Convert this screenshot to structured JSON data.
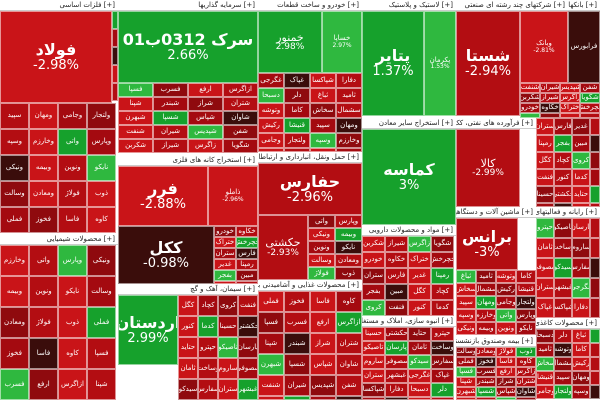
{
  "sectors": [
    {
      "id": "s1",
      "label": "[+] فلزات اساسی"
    },
    {
      "id": "s2",
      "label": "[+] سرمایه گذاریها"
    },
    {
      "id": "s3",
      "label": "[+] خودرو و ساخت قطعات"
    },
    {
      "id": "s4",
      "label": "[+] لاستیک و پلاستیک"
    },
    {
      "id": "s5",
      "label": "[+] شرکتهای چند رشته ای صنعتی"
    },
    {
      "id": "s6",
      "label": "[+] بانکها"
    },
    {
      "id": "s7",
      "label": "[+] استخراج کانه های فلزی"
    },
    {
      "id": "s8",
      "label": "[+] حمل ونقل، انبارداری و ارتباطات"
    },
    {
      "id": "s9",
      "label": "[+] استخراج سایر معادن"
    },
    {
      "id": "s10",
      "label": "[+] فرآورده های نفتی، کک و سوخت هسته ای"
    },
    {
      "id": "s11",
      "label": "[+] محصولات شیمیایی"
    },
    {
      "id": "s12",
      "label": "[+] سیمان، آهک و گچ"
    },
    {
      "id": "s13",
      "label": "[+] محصولات غذایی و آشامیدنی به جز قند و شکر"
    },
    {
      "id": "s14",
      "label": "[+] مواد و محصولات دارویی"
    },
    {
      "id": "s15",
      "label": "[+] ماشین آلات و دستگاههای برقی"
    },
    {
      "id": "s16",
      "label": "[+] رایانه و فعالیتهای وابسته به آن"
    },
    {
      "id": "s17",
      "label": "[+] انبوه سازی، املاک و مستغلات"
    },
    {
      "id": "s18",
      "label": "[+] بیمه وصندوق بازنشستگی"
    },
    {
      "id": "s19",
      "label": "[+] محصولات کاغذی"
    }
  ],
  "tiles": [
    {
      "sym": "فولاد",
      "pct": "-2.98%"
    },
    {
      "sym": "سرک 0312ب01",
      "pct": "2.66%"
    },
    {
      "sym": "خمنور",
      "pct": "2.98%"
    },
    {
      "sym": "خساپا",
      "pct": "2.97%"
    },
    {
      "sym": "پتایر",
      "pct": "1.37%"
    },
    {
      "sym": "پکرمان",
      "pct": "1.53%"
    },
    {
      "sym": "شستا",
      "pct": "-2.94%"
    },
    {
      "sym": "وبانک",
      "pct": "-2.81%"
    },
    {
      "sym": "فرابورس",
      "pct": ""
    },
    {
      "sym": "کماسه",
      "pct": "3%"
    },
    {
      "sym": "کالا",
      "pct": "-2.99%"
    },
    {
      "sym": "حفارس",
      "pct": "-2.96%"
    },
    {
      "sym": "فرر",
      "pct": "-2.88%"
    },
    {
      "sym": "ذاملو",
      "pct": "-2.96%"
    },
    {
      "sym": "ککل",
      "pct": "-0.98%"
    },
    {
      "sym": "اردستان",
      "pct": "2.99%"
    },
    {
      "sym": "حکشتی",
      "pct": "-2.93%"
    },
    {
      "sym": "برانس",
      "pct": "-3%"
    }
  ],
  "small_labels": [
    "سپید",
    "ومهان",
    "وجامی",
    "ولتجار",
    "وسپه",
    "وخارزم",
    "واتی",
    "وپارس",
    "ونیکی",
    "وبیمه",
    "ونوین",
    "نایکو",
    "وسالت",
    "ومعادن",
    "فولاژ",
    "ذوب",
    "فملی",
    "فخوز",
    "فاسا",
    "کاوه",
    "فسپا",
    "فسرب",
    "ارفع",
    "ازاگرس",
    "شپنا",
    "شبندر",
    "شراز",
    "شتران",
    "شبهرن",
    "شسپا",
    "شپاس",
    "شاوان",
    "شنفت",
    "شیران",
    "شپدیس",
    "شفن",
    "شکربن",
    "شیراز",
    "زاگرس",
    "شگویا",
    "خودرو",
    "خکاوه",
    "ختراک",
    "خچرخش",
    "ستران",
    "فارس",
    "غدیر",
    "رمپنا",
    "بفجر",
    "مبین",
    "کگل",
    "کچاد",
    "کروی",
    "فنفت",
    "کنور",
    "کدما",
    "حسینا",
    "حکشتی",
    "حتاید",
    "حپترو",
    "تاصیکو",
    "پارسان",
    "ثامان",
    "وساخت",
    "ساروم",
    "سصوفی",
    "سیدکو",
    "سفارس",
    "ستران",
    "غبشهر",
    "غگرجی",
    "غپاک",
    "شپاکسا",
    "دفارا",
    "دسبحا",
    "دلر",
    "ثباغ",
    "ثامید",
    "وتوشه",
    "کاما",
    "سخاش",
    "سشمال",
    "رکیش",
    "قنیشا"
  ],
  "legend": {
    "colors": {
      "up": "#16a12c",
      "down": "#b30d12",
      "flat": "#3a0d0b"
    }
  }
}
